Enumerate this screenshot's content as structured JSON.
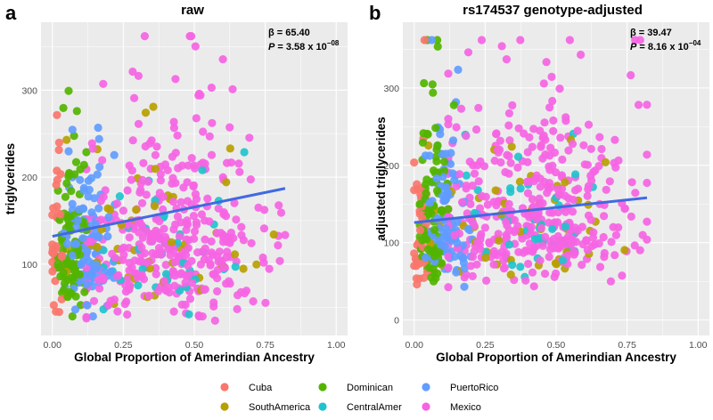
{
  "colors": {
    "panel_bg": "#ebebeb",
    "grid": "#ffffff",
    "trend": "#4169e1"
  },
  "chart_data": [
    {
      "type": "scatter",
      "panel_label": "a",
      "title": "raw",
      "xlabel": "Global Proportion of Amerindian Ancestry",
      "ylabel": "triglycerides",
      "xlim": [
        -0.04,
        1.04
      ],
      "ylim": [
        18,
        378
      ],
      "x_ticks": [
        0.0,
        0.25,
        0.5,
        0.75,
        1.0
      ],
      "x_tick_labels": [
        "0.00",
        "0.25",
        "0.50",
        "0.75",
        "1.00"
      ],
      "y_ticks": [
        100,
        200,
        300
      ],
      "y_tick_labels": [
        "100",
        "200",
        "300"
      ],
      "stats": {
        "beta": "β = 65.40",
        "p_prefix": "P",
        "p_value": " = 3.58 x 10",
        "p_exp": "−08"
      },
      "trend": {
        "x": [
          0.0,
          0.82
        ],
        "y": [
          132,
          187
        ]
      },
      "groups": [
        {
          "name": "Mexico",
          "color": "#f564e3",
          "n": 390,
          "x_range": [
            0.12,
            0.82
          ],
          "x_mean": 0.42,
          "y_median": 125,
          "y_spread": 0.42,
          "y_floor": 35,
          "y_cap": 362
        },
        {
          "name": "CentralAmer",
          "color": "#1fc3cd",
          "n": 40,
          "x_range": [
            0.18,
            0.7
          ],
          "x_mean": 0.42,
          "y_median": 120,
          "y_spread": 0.4,
          "y_floor": 40,
          "y_cap": 362
        },
        {
          "name": "SouthAmerica",
          "color": "#b79f00",
          "n": 50,
          "x_range": [
            0.05,
            0.78
          ],
          "x_mean": 0.35,
          "y_median": 120,
          "y_spread": 0.38,
          "y_floor": 45,
          "y_cap": 362
        },
        {
          "name": "PuertoRico",
          "color": "#619cff",
          "n": 110,
          "x_range": [
            0.04,
            0.22
          ],
          "x_mean": 0.12,
          "y_median": 120,
          "y_spread": 0.38,
          "y_floor": 40,
          "y_cap": 362
        },
        {
          "name": "Dominican",
          "color": "#53b400",
          "n": 95,
          "x_range": [
            0.02,
            0.14
          ],
          "x_mean": 0.07,
          "y_median": 125,
          "y_spread": 0.42,
          "y_floor": 40,
          "y_cap": 362
        },
        {
          "name": "Cuba",
          "color": "#f8766d",
          "n": 35,
          "x_range": [
            0.0,
            0.06
          ],
          "x_mean": 0.02,
          "y_median": 130,
          "y_spread": 0.45,
          "y_floor": 45,
          "y_cap": 362
        }
      ]
    },
    {
      "type": "scatter",
      "panel_label": "b",
      "title": "rs174537 genotype-adjusted",
      "xlabel": "Global Proportion of Amerindian Ancestry",
      "ylabel": "adjusted triglycerides",
      "xlim": [
        -0.04,
        1.04
      ],
      "ylim": [
        -20,
        385
      ],
      "x_ticks": [
        0.0,
        0.25,
        0.5,
        0.75,
        1.0
      ],
      "x_tick_labels": [
        "0.00",
        "0.25",
        "0.50",
        "0.75",
        "1.00"
      ],
      "y_ticks": [
        0,
        100,
        200,
        300
      ],
      "y_tick_labels": [
        "0",
        "100",
        "200",
        "300"
      ],
      "stats": {
        "beta": "β = 39.47",
        "p_prefix": "P",
        "p_value": " = 8.16 x 10",
        "p_exp": "−04"
      },
      "trend": {
        "x": [
          0.0,
          0.82
        ],
        "y": [
          126,
          158
        ]
      },
      "groups": [
        {
          "name": "Mexico",
          "color": "#f564e3",
          "n": 390,
          "x_range": [
            0.12,
            0.82
          ],
          "x_mean": 0.42,
          "y_median": 135,
          "y_spread": 0.45,
          "y_floor": 5,
          "y_cap": 362
        },
        {
          "name": "CentralAmer",
          "color": "#1fc3cd",
          "n": 40,
          "x_range": [
            0.18,
            0.7
          ],
          "x_mean": 0.42,
          "y_median": 125,
          "y_spread": 0.42,
          "y_floor": 20,
          "y_cap": 362
        },
        {
          "name": "SouthAmerica",
          "color": "#b79f00",
          "n": 50,
          "x_range": [
            0.05,
            0.78
          ],
          "x_mean": 0.35,
          "y_median": 125,
          "y_spread": 0.4,
          "y_floor": 20,
          "y_cap": 362
        },
        {
          "name": "PuertoRico",
          "color": "#619cff",
          "n": 110,
          "x_range": [
            0.04,
            0.22
          ],
          "x_mean": 0.12,
          "y_median": 130,
          "y_spread": 0.42,
          "y_floor": 10,
          "y_cap": 362
        },
        {
          "name": "Dominican",
          "color": "#53b400",
          "n": 95,
          "x_range": [
            0.02,
            0.14
          ],
          "x_mean": 0.07,
          "y_median": 135,
          "y_spread": 0.45,
          "y_floor": 20,
          "y_cap": 362
        },
        {
          "name": "Cuba",
          "color": "#f8766d",
          "n": 35,
          "x_range": [
            0.0,
            0.06
          ],
          "x_mean": 0.02,
          "y_median": 120,
          "y_spread": 0.5,
          "y_floor": 40,
          "y_cap": 362
        }
      ]
    }
  ],
  "legend": {
    "items": [
      {
        "label": "Cuba",
        "color": "#f8766d"
      },
      {
        "label": "Dominican",
        "color": "#53b400"
      },
      {
        "label": "PuertoRico",
        "color": "#619cff"
      },
      {
        "label": "SouthAmerica",
        "color": "#b79f00"
      },
      {
        "label": "CentralAmer",
        "color": "#1fc3cd"
      },
      {
        "label": "Mexico",
        "color": "#f564e3"
      }
    ]
  }
}
